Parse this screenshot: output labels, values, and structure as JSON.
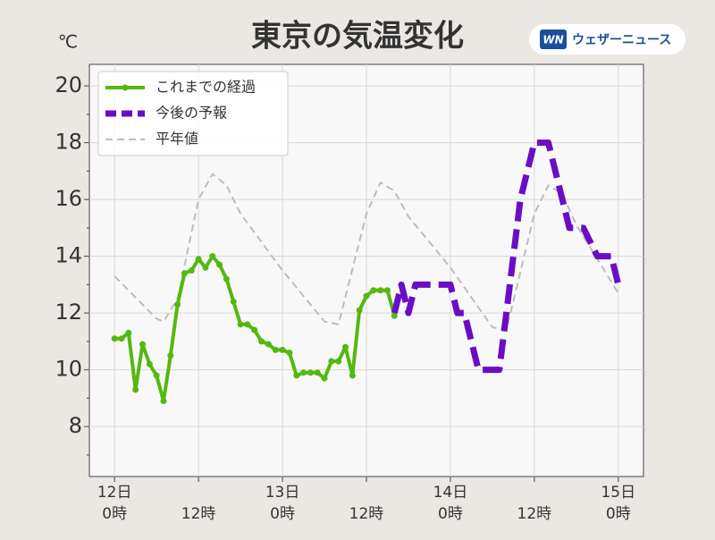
{
  "chart_data": {
    "type": "line",
    "title": "東京の気温変化",
    "unit": "℃",
    "brand": "ウェザーニュース",
    "brand_mark": "WN",
    "xlim": [
      -3.6,
      75.6
    ],
    "ylim": [
      6.24,
      20.76
    ],
    "yticks": [
      8,
      10,
      12,
      14,
      16,
      18,
      20
    ],
    "yminor": [
      7,
      9,
      11,
      13,
      15,
      17,
      19
    ],
    "xticks": [
      {
        "value": 0,
        "label": [
          "12日",
          "0時"
        ]
      },
      {
        "value": 12,
        "label": [
          "12時"
        ]
      },
      {
        "value": 24,
        "label": [
          "13日",
          "0時"
        ]
      },
      {
        "value": 36,
        "label": [
          "12時"
        ]
      },
      {
        "value": 48,
        "label": [
          "14日",
          "0時"
        ]
      },
      {
        "value": 60,
        "label": [
          "12時"
        ]
      },
      {
        "value": 72,
        "label": [
          "15日",
          "0時"
        ]
      }
    ],
    "grid": true,
    "legend": "upper left",
    "series": [
      {
        "name": "これまでの経過",
        "color": "#55b80f",
        "dash": false,
        "marker": true,
        "width": 4,
        "x": [
          0,
          1,
          2,
          3,
          4,
          5,
          6,
          7,
          8,
          9,
          10,
          11,
          12,
          13,
          14,
          15,
          16,
          17,
          18,
          19,
          20,
          21,
          22,
          23,
          24,
          25,
          26,
          27,
          28,
          29,
          30,
          31,
          32,
          33,
          34,
          35,
          36,
          37,
          38,
          39,
          40
        ],
        "values": [
          11.1,
          11.1,
          11.3,
          9.3,
          10.9,
          10.2,
          9.8,
          8.9,
          10.5,
          12.3,
          13.4,
          13.5,
          13.9,
          13.6,
          14.0,
          13.7,
          13.2,
          12.4,
          11.6,
          11.6,
          11.4,
          11.0,
          10.9,
          10.7,
          10.7,
          10.6,
          9.8,
          9.9,
          9.9,
          9.9,
          9.7,
          10.3,
          10.3,
          10.8,
          9.8,
          12.1,
          12.6,
          12.8,
          12.8,
          12.8,
          11.9
        ]
      },
      {
        "name": "今後の予報",
        "color": "#6a0dc4",
        "dash": true,
        "marker": false,
        "width": 7,
        "x": [
          40,
          41,
          42,
          43,
          44,
          45,
          46,
          47,
          48,
          49,
          50,
          51,
          52,
          53,
          54,
          55,
          56,
          57,
          58,
          59,
          60,
          61,
          62,
          63,
          64,
          65,
          66,
          67,
          68,
          69,
          70,
          71,
          72
        ],
        "values": [
          12.0,
          13.0,
          12.0,
          13,
          13,
          13,
          13,
          13,
          13,
          12,
          12,
          11,
          10,
          10,
          10,
          10,
          12,
          14,
          16,
          17,
          18,
          18,
          18,
          17,
          16,
          15,
          15,
          15,
          14.5,
          14,
          14,
          14,
          13
        ]
      },
      {
        "name": "平年値",
        "color": "#bdbdbd",
        "dash": true,
        "marker": false,
        "width": 2,
        "x": [
          0,
          6,
          7,
          9,
          12,
          14,
          16,
          18,
          24,
          30,
          32,
          36,
          38,
          40,
          42,
          48,
          54,
          56,
          60,
          62,
          64,
          66,
          72
        ],
        "values": [
          13.3,
          11.8,
          11.7,
          12.5,
          16.0,
          16.9,
          16.5,
          15.5,
          13.5,
          11.7,
          11.6,
          15.5,
          16.6,
          16.3,
          15.4,
          13.6,
          11.5,
          11.4,
          15.5,
          16.5,
          16.2,
          15.1,
          12.7
        ]
      }
    ]
  }
}
